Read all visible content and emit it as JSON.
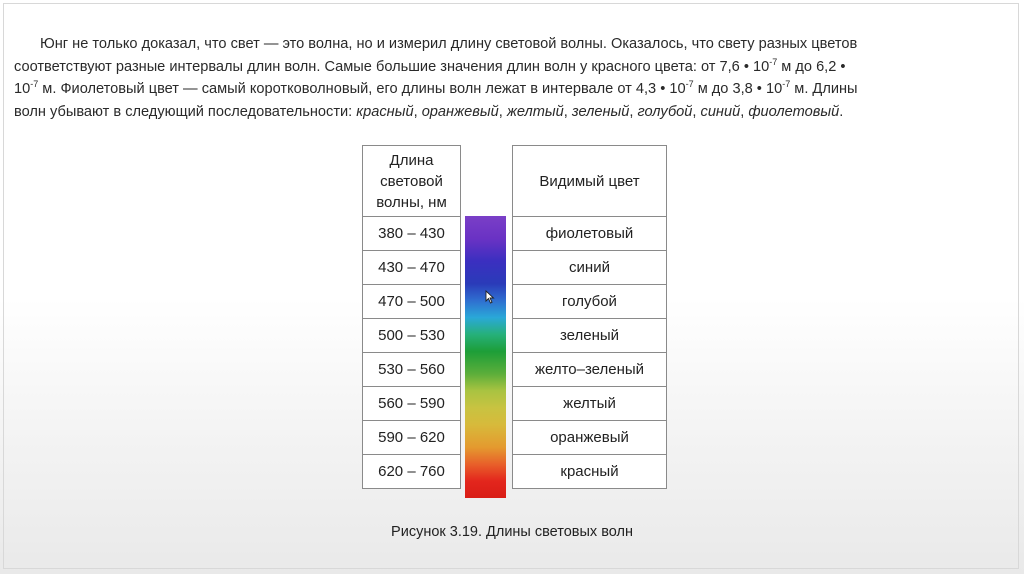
{
  "intro": {
    "l1": "Юнг не только доказал, что свет — это волна, но и измерил длину световой волны. Оказалось, что свету разных цветов",
    "l2": "соответствуют разные интервалы длин волн. Самые большие значения длин волн у красного цвета: от 7,6 • 10",
    "l2_sup1": "-7",
    "l2_b": " м до 6,2 •",
    "l3_a": "10",
    "l3_sup1": "-7",
    "l3_b": " м. Фиолетовый цвет — самый коротковолновый, его длины волн лежат в интервале от 4,3 • 10",
    "l3_sup2": "-7",
    "l3_c": " м до 3,8 • 10",
    "l3_sup3": "-7",
    "l3_d": " м. Длины",
    "l4_a": "волн убывают в следующий последовательности: ",
    "colors_italic": [
      "красный",
      "оранжевый",
      "желтый",
      "зеленый",
      "голубой",
      "синий",
      "фиолетовый"
    ],
    "sep": ", ",
    "end": "."
  },
  "table": {
    "left_header": [
      "Длина",
      "световой",
      "волны, нм"
    ],
    "right_header": "Видимый цвет",
    "rows": [
      {
        "range": "380 – 430",
        "color": "фиолетовый"
      },
      {
        "range": "430 – 470",
        "color": "синий"
      },
      {
        "range": "470 – 500",
        "color": "голубой"
      },
      {
        "range": "500 – 530",
        "color": "зеленый"
      },
      {
        "range": "530 – 560",
        "color": "желто–зеленый"
      },
      {
        "range": "560 – 590",
        "color": "желтый"
      },
      {
        "range": "590 – 620",
        "color": "оранжевый"
      },
      {
        "range": "620 – 760",
        "color": "красный"
      }
    ]
  },
  "caption": "Рисунок 3.19. Длины световых волн"
}
